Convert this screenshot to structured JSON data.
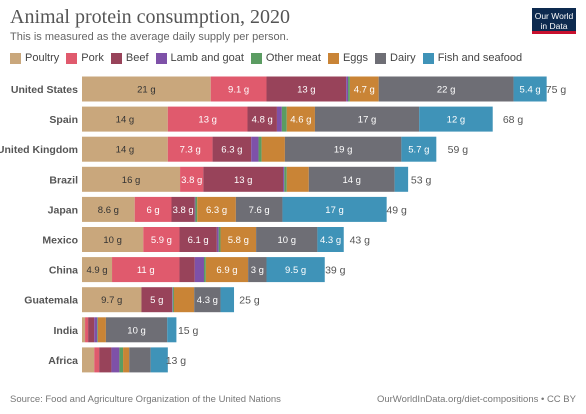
{
  "header": {
    "title": "Animal protein consumption, 2020",
    "subtitle": "This is measured as the average daily supply per person.",
    "logo_line1": "Our World",
    "logo_line2": "in Data"
  },
  "footer": {
    "source": "Source: Food and Agriculture Organization of the United Nations",
    "credit": "OurWorldInData.org/diet-compositions • CC BY"
  },
  "chart_data": {
    "type": "bar",
    "orientation": "horizontal",
    "stacked": true,
    "unit": "g",
    "title": "Animal protein consumption, 2020",
    "subtitle": "This is measured as the average daily supply per person.",
    "legend_position": "top",
    "categories": [
      "United States",
      "Spain",
      "United Kingdom",
      "Brazil",
      "Japan",
      "Mexico",
      "China",
      "Guatemala",
      "India",
      "Africa"
    ],
    "series": [
      {
        "name": "Poultry",
        "color": "#c9a77c",
        "values": [
          21,
          14,
          14,
          16,
          8.6,
          10,
          4.9,
          9.7,
          0.5,
          2
        ]
      },
      {
        "name": "Pork",
        "color": "#e05a6d",
        "values": [
          9.1,
          13,
          7.3,
          3.8,
          6,
          5.9,
          11,
          0,
          0.5,
          0.8
        ]
      },
      {
        "name": "Beef",
        "color": "#98435a",
        "values": [
          13,
          4.8,
          6.3,
          13,
          3.8,
          6.1,
          2.5,
          5,
          1,
          2
        ]
      },
      {
        "name": "Lamb and goat",
        "color": "#7e51a8",
        "values": [
          0.3,
          0.8,
          1.2,
          0.2,
          0.1,
          0.3,
          1.5,
          0.1,
          0.5,
          1.3
        ]
      },
      {
        "name": "Other meat",
        "color": "#5b9c62",
        "values": [
          0.3,
          0.8,
          0.5,
          0.4,
          0.3,
          0.3,
          0.3,
          0.2,
          0.1,
          0.6
        ]
      },
      {
        "name": "Eggs",
        "color": "#c98436",
        "values": [
          4.7,
          4.6,
          3.8,
          3.6,
          6.3,
          5.8,
          6.9,
          3.3,
          1.3,
          1
        ]
      },
      {
        "name": "Dairy",
        "color": "#6e6e75",
        "values": [
          22,
          17,
          19,
          14,
          7.6,
          10,
          3,
          4.3,
          10,
          3.5
        ]
      },
      {
        "name": "Fish and seafood",
        "color": "#3f93b8",
        "values": [
          5.4,
          12,
          5.7,
          2.2,
          17,
          4.3,
          9.5,
          2.2,
          1.5,
          2.8
        ]
      }
    ],
    "segment_labels": [
      [
        "21 g",
        "9.1 g",
        "13 g",
        "",
        "",
        "4.7 g",
        "22 g",
        "5.4 g"
      ],
      [
        "14 g",
        "13 g",
        "4.8 g",
        "",
        "",
        "4.6 g",
        "17 g",
        "12 g"
      ],
      [
        "14 g",
        "7.3 g",
        "6.3 g",
        "",
        "",
        "",
        "19 g",
        "5.7 g"
      ],
      [
        "16 g",
        "3.8 g",
        "13 g",
        "",
        "",
        "",
        "14 g",
        ""
      ],
      [
        "8.6 g",
        "6 g",
        "3.8 g",
        "",
        "",
        "6.3 g",
        "7.6 g",
        "17 g"
      ],
      [
        "10 g",
        "5.9 g",
        "6.1 g",
        "",
        "",
        "5.8 g",
        "10 g",
        "4.3 g"
      ],
      [
        "4.9 g",
        "11 g",
        "",
        "",
        "",
        "6.9 g",
        "3 g",
        "9.5 g"
      ],
      [
        "9.7 g",
        "",
        "5 g",
        "",
        "",
        "",
        "4.3 g",
        ""
      ],
      [
        "",
        "",
        "",
        "",
        "",
        "",
        "10 g",
        ""
      ],
      [
        "",
        "",
        "",
        "",
        "",
        "",
        "",
        ""
      ]
    ],
    "totals": [
      75,
      68,
      59,
      53,
      49,
      43,
      39,
      25,
      15,
      13
    ],
    "total_labels": [
      "75 g",
      "68 g",
      "59 g",
      "53 g",
      "49 g",
      "43 g",
      "39 g",
      "25 g",
      "15 g",
      "13 g"
    ]
  }
}
